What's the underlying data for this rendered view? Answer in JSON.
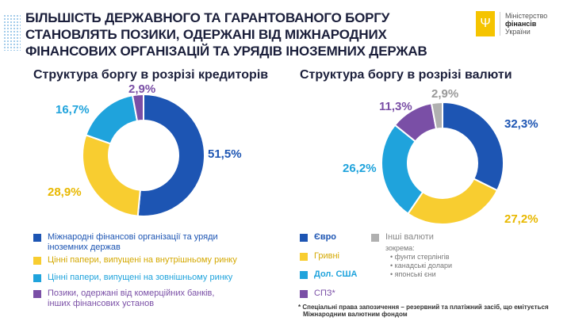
{
  "title": [
    "БІЛЬШІСТЬ ДЕРЖАВНОГО ТА ГАРАНТОВАНОГО БОРГУ",
    "СТАНОВЛЯТЬ ПОЗИКИ, ОДЕРЖАНІ ВІД МІЖНАРОДНИХ",
    "ФІНАНСОВИХ ОРГАНІЗАЦІЙ ТА УРЯДІВ ІНОЗЕМНИХ ДЕРЖАВ"
  ],
  "logo": {
    "line1": "Міністерство",
    "line2": "фінансів",
    "line3": "України"
  },
  "colors": {
    "blue": "#1d55b3",
    "yellow": "#f8cd30",
    "cyan": "#1fa3dc",
    "purple": "#7a4fa6",
    "grey": "#b0b0b0"
  },
  "chart_data": [
    {
      "type": "pie",
      "title": "Структура боргу в розрізі кредиторів",
      "categories": [
        "Міжнародні фінансові організації та уряди іноземних держав",
        "Цінні папери, випущені на внутрішньому ринку",
        "Цінні папери, випущені на зовнішньому ринку",
        "Позики, одержані від комерційних банків, інших фінансових установ"
      ],
      "values": [
        51.5,
        28.9,
        16.7,
        2.9
      ],
      "labels": [
        "51,5%",
        "28,9%",
        "16,7%",
        "2,9%"
      ]
    },
    {
      "type": "pie",
      "title": "Структура боргу в розрізі валюти",
      "categories": [
        "Євро",
        "Гривні",
        "Дол. США",
        "СПЗ*",
        "Інші валюти"
      ],
      "values": [
        32.3,
        27.2,
        26.2,
        11.3,
        2.9
      ],
      "labels": [
        "32,3%",
        "27,2%",
        "26,2%",
        "11,3%",
        "2,9%"
      ],
      "other_note": {
        "intro": "зокрема:",
        "items": [
          "• фунти стерлінгів",
          "• канадські долари",
          "• японські єни"
        ]
      }
    }
  ],
  "footnote": [
    "* Спеціальні права запозичення – резервний та платіжний засіб, що емітується",
    "Міжнародним валютним фондом"
  ]
}
